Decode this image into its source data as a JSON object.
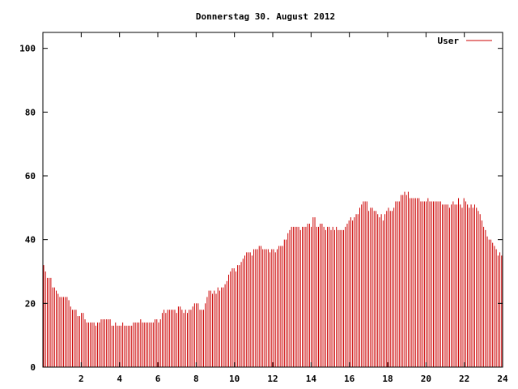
{
  "chart_data": {
    "type": "bar",
    "title": "Donnerstag 30. August 2012",
    "xlabel": "",
    "ylabel": "",
    "xlim": [
      0,
      24
    ],
    "ylim": [
      0,
      105
    ],
    "x_ticks": [
      2,
      4,
      6,
      8,
      10,
      12,
      14,
      16,
      18,
      20,
      22,
      24
    ],
    "y_ticks": [
      0,
      20,
      40,
      60,
      80,
      100
    ],
    "legend_position": "top-right",
    "grid": false,
    "color": "#cc0000",
    "series": [
      {
        "name": "User",
        "values": [
          32,
          30,
          28,
          28,
          28,
          25,
          25,
          24,
          23,
          22,
          22,
          22,
          22,
          22,
          21,
          19,
          18,
          18,
          18,
          16,
          16,
          17,
          17,
          15,
          14,
          14,
          14,
          14,
          14,
          13,
          14,
          14,
          15,
          15,
          15,
          15,
          15,
          15,
          13,
          13,
          14,
          13,
          13,
          13,
          14,
          13,
          13,
          13,
          13,
          13,
          14,
          14,
          14,
          14,
          15,
          14,
          14,
          14,
          14,
          14,
          14,
          14,
          15,
          15,
          14,
          15,
          17,
          18,
          17,
          18,
          18,
          18,
          18,
          18,
          17,
          19,
          19,
          18,
          17,
          18,
          17,
          18,
          18,
          19,
          20,
          20,
          20,
          18,
          18,
          18,
          20,
          22,
          24,
          24,
          23,
          24,
          23,
          25,
          24,
          25,
          25,
          26,
          27,
          29,
          30,
          31,
          31,
          30,
          32,
          32,
          33,
          34,
          35,
          36,
          36,
          36,
          35,
          37,
          37,
          37,
          38,
          38,
          37,
          37,
          37,
          37,
          36,
          37,
          37,
          36,
          37,
          38,
          38,
          38,
          40,
          40,
          42,
          43,
          44,
          44,
          44,
          44,
          44,
          43,
          44,
          44,
          44,
          45,
          45,
          44,
          47,
          47,
          44,
          44,
          45,
          45,
          44,
          43,
          44,
          44,
          43,
          44,
          43,
          44,
          43,
          43,
          43,
          43,
          44,
          45,
          46,
          47,
          46,
          47,
          48,
          48,
          50,
          51,
          52,
          52,
          52,
          49,
          50,
          50,
          49,
          49,
          48,
          47,
          48,
          46,
          48,
          49,
          50,
          49,
          49,
          50,
          52,
          52,
          52,
          54,
          54,
          55,
          54,
          55,
          53,
          53,
          53,
          53,
          53,
          53,
          52,
          52,
          52,
          52,
          53,
          52,
          52,
          52,
          52,
          52,
          52,
          52,
          51,
          51,
          51,
          51,
          50,
          51,
          52,
          51,
          51,
          53,
          51,
          50,
          53,
          52,
          51,
          50,
          51,
          50,
          51,
          50,
          49,
          48,
          46,
          44,
          43,
          41,
          40,
          40,
          39,
          38,
          37,
          35,
          36,
          35
        ]
      }
    ]
  }
}
